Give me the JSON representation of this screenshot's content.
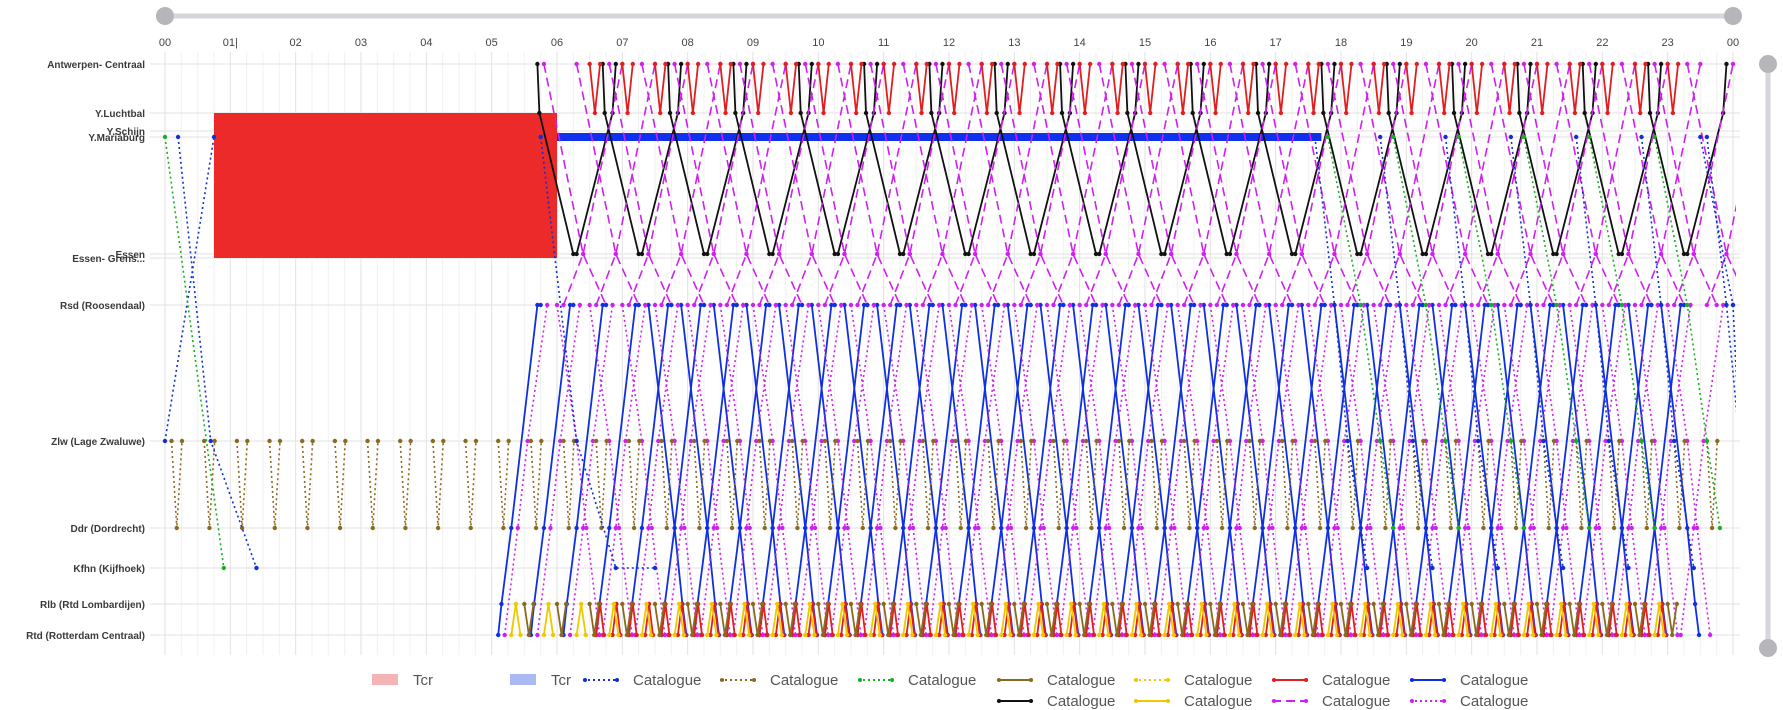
{
  "chart_data": {
    "type": "line",
    "x_axis": {
      "ticks": [
        "00",
        "01",
        "02",
        "03",
        "04",
        "05",
        "06",
        "07",
        "08",
        "09",
        "10",
        "11",
        "12",
        "13",
        "14",
        "15",
        "16",
        "17",
        "18",
        "19",
        "20",
        "21",
        "22",
        "23",
        "00"
      ],
      "cursor_label": "01|"
    },
    "stations": [
      {
        "id": "antwerpen",
        "label": "Antwerpen- Centraal"
      },
      {
        "id": "luchtbal",
        "label": "Y.Luchtbal"
      },
      {
        "id": "schijn",
        "label": "Y.Schijn"
      },
      {
        "id": "mariaburg",
        "label": "Y.Mariaburg"
      },
      {
        "id": "essen",
        "label": "Essen"
      },
      {
        "id": "essen_grens",
        "label": "Essen- Grens..."
      },
      {
        "id": "rsd",
        "label": "Rsd (Roosendaal)"
      },
      {
        "id": "zlw",
        "label": "Zlw (Lage Zwaluwe)"
      },
      {
        "id": "ddr",
        "label": "Ddr (Dordrecht)"
      },
      {
        "id": "kfhn",
        "label": "Kfhn (Kijfhoek)"
      },
      {
        "id": "rlb",
        "label": "Rlb (Rtd Lombardijen)"
      },
      {
        "id": "rtd",
        "label": "Rtd (Rotterdam Centraal)"
      }
    ],
    "tcr_block": {
      "label": "Tcr",
      "from_hour": 0.75,
      "to_hour": 6.0,
      "station_from": "luchtbal",
      "station_to": "essen_grens",
      "color": "#ec2a2a"
    },
    "tcr_bar": {
      "label": "Tcr",
      "from_hour": 6.0,
      "to_hour": 17.7,
      "station": "mariaburg",
      "color": "#1030f0"
    },
    "legend": [
      {
        "label": "Tcr",
        "kind": "block",
        "color": "#f4b4b4"
      },
      {
        "label": "Tcr",
        "kind": "block",
        "color": "#aab8f4"
      },
      {
        "label": "Catalogue",
        "kind": "dotted",
        "color": "#1030d0"
      },
      {
        "label": "Catalogue",
        "kind": "dotted",
        "color": "#8a6a20"
      },
      {
        "label": "Catalogue",
        "kind": "dotted",
        "color": "#18b020"
      },
      {
        "label": "Catalogue",
        "kind": "solid",
        "color": "#8a6a20"
      },
      {
        "label": "Catalogue",
        "kind": "dotted",
        "color": "#f0c800"
      },
      {
        "label": "Catalogue",
        "kind": "solid",
        "color": "#e02020"
      },
      {
        "label": "Catalogue",
        "kind": "solid",
        "color": "#1030e0"
      },
      {
        "label": "Catalogue",
        "kind": "solid",
        "color": "#111111"
      },
      {
        "label": "Catalogue",
        "kind": "solid",
        "color": "#f0c800"
      },
      {
        "label": "Catalogue",
        "kind": "dashed",
        "color": "#d020f0"
      },
      {
        "label": "Catalogue",
        "kind": "dotted",
        "color": "#d020f0"
      }
    ],
    "series": [
      {
        "name": "Catalogue",
        "color": "#111111",
        "style": "solid",
        "period": 1.0,
        "start": 5.7,
        "end": 23.6,
        "route": [
          [
            "antwerpen",
            0
          ],
          [
            "luchtbal",
            0.03
          ],
          [
            "essen",
            0.55
          ]
        ]
      },
      {
        "name": "Catalogue",
        "color": "#111111",
        "style": "solid",
        "period": 1.0,
        "start": 6.3,
        "end": 23.8,
        "route": [
          [
            "essen",
            0
          ],
          [
            "luchtbal",
            0.55
          ],
          [
            "antwerpen",
            0.6
          ]
        ]
      },
      {
        "name": "Catalogue",
        "color": "#d020f0",
        "style": "dashed",
        "period": 0.5,
        "start": 5.8,
        "end": 23.6,
        "route": [
          [
            "antwerpen",
            0
          ],
          [
            "essen",
            0.6
          ],
          [
            "rsd",
            0.95
          ]
        ]
      },
      {
        "name": "Catalogue",
        "color": "#d020f0",
        "style": "dashed",
        "period": 0.5,
        "start": 6.1,
        "end": 23.8,
        "route": [
          [
            "rsd",
            0
          ],
          [
            "essen",
            0.3
          ],
          [
            "antwerpen",
            0.9
          ]
        ]
      },
      {
        "name": "Catalogue",
        "color": "#e02020",
        "style": "solid",
        "period": 0.5,
        "start": 6.5,
        "end": 23.2,
        "route": [
          [
            "antwerpen",
            0
          ],
          [
            "luchtbal",
            0.08
          ],
          [
            "antwerpen",
            0.16
          ]
        ]
      },
      {
        "name": "Catalogue",
        "color": "#1030e0",
        "style": "solid",
        "period": 0.5,
        "start": 5.1,
        "end": 22.8,
        "route": [
          [
            "rtd",
            0
          ],
          [
            "rlb",
            0.05
          ],
          [
            "ddr",
            0.2
          ],
          [
            "rsd",
            0.6
          ],
          [
            "rsd",
            0.65
          ]
        ]
      },
      {
        "name": "Catalogue",
        "color": "#1030e0",
        "style": "solid",
        "period": 0.5,
        "start": 7.4,
        "end": 23.2,
        "route": [
          [
            "rsd",
            0
          ],
          [
            "ddr",
            0.4
          ],
          [
            "rlb",
            0.52
          ],
          [
            "rtd",
            0.58
          ]
        ]
      },
      {
        "name": "Catalogue",
        "color": "#d020f0",
        "style": "dotted",
        "period": 0.5,
        "start": 5.2,
        "end": 23.2,
        "route": [
          [
            "rtd",
            0
          ],
          [
            "ddr",
            0.2
          ],
          [
            "zlw",
            0.35
          ],
          [
            "rsd",
            0.65
          ]
        ]
      },
      {
        "name": "Catalogue",
        "color": "#d020f0",
        "style": "dotted",
        "period": 0.5,
        "start": 6.0,
        "end": 23.3,
        "route": [
          [
            "rsd",
            0
          ],
          [
            "zlw",
            0.3
          ],
          [
            "ddr",
            0.45
          ],
          [
            "rtd",
            0.65
          ]
        ]
      },
      {
        "name": "Catalogue",
        "color": "#8a6a20",
        "style": "dotted",
        "period": 0.5,
        "start": 0.1,
        "end": 23.9,
        "route": [
          [
            "zlw",
            0
          ],
          [
            "ddr",
            0.08
          ],
          [
            "zlw",
            0.16
          ]
        ]
      },
      {
        "name": "Catalogue",
        "color": "#e02020",
        "style": "solid",
        "period": 0.25,
        "start": 6.6,
        "end": 23.0,
        "route": [
          [
            "rtd",
            0
          ],
          [
            "rlb",
            0.06
          ],
          [
            "rtd",
            0.12
          ]
        ]
      },
      {
        "name": "Catalogue",
        "color": "#f0c800",
        "style": "solid",
        "period": 0.5,
        "start": 5.3,
        "end": 23.0,
        "route": [
          [
            "rtd",
            0
          ],
          [
            "rlb",
            0.07
          ],
          [
            "rtd",
            0.14
          ]
        ]
      },
      {
        "name": "Catalogue",
        "color": "#8a6a20",
        "style": "solid",
        "period": 0.5,
        "start": 5.5,
        "end": 23.0,
        "route": [
          [
            "rlb",
            0
          ],
          [
            "rtd",
            0.07
          ],
          [
            "rlb",
            0.14
          ]
        ]
      },
      {
        "name": "Catalogue",
        "color": "#1030d0",
        "style": "dotted",
        "period": 1.0,
        "start": 17.6,
        "end": 23.8,
        "route": [
          [
            "mariaburg",
            0
          ],
          [
            "rsd",
            0.3
          ],
          [
            "zlw",
            0.5
          ],
          [
            "kfhn",
            0.8
          ]
        ]
      },
      {
        "name": "Catalogue",
        "color": "#18b020",
        "style": "dotted",
        "period": 1.0,
        "start": 17.8,
        "end": 22.8,
        "route": [
          [
            "mariaburg",
            0
          ],
          [
            "rsd",
            0.5
          ],
          [
            "zlw",
            0.8
          ],
          [
            "ddr",
            1.0
          ]
        ]
      }
    ],
    "extra_paths": [
      {
        "color": "#1030d0",
        "style": "dotted",
        "points": [
          [
            0.2,
            "mariaburg"
          ],
          [
            0.7,
            "zlw"
          ],
          [
            1.4,
            "kfhn"
          ]
        ]
      },
      {
        "color": "#1030d0",
        "style": "dotted",
        "points": [
          [
            0.0,
            "zlw"
          ],
          [
            0.75,
            "mariaburg"
          ]
        ]
      },
      {
        "color": "#18b020",
        "style": "dotted",
        "points": [
          [
            0.0,
            "mariaburg"
          ],
          [
            0.9,
            "kfhn"
          ]
        ]
      },
      {
        "color": "#1030d0",
        "style": "dotted",
        "points": [
          [
            5.75,
            "mariaburg"
          ],
          [
            6.3,
            "zlw"
          ],
          [
            6.9,
            "kfhn"
          ],
          [
            7.5,
            "kfhn"
          ]
        ]
      },
      {
        "color": "#1030d0",
        "style": "dotted",
        "points": [
          [
            24.0,
            "rsd"
          ],
          [
            24.1,
            "zlw"
          ]
        ]
      },
      {
        "color": "#1030d0",
        "style": "dotted",
        "points": [
          [
            23.5,
            "mariaburg"
          ],
          [
            24.0,
            "rsd"
          ]
        ]
      }
    ]
  }
}
